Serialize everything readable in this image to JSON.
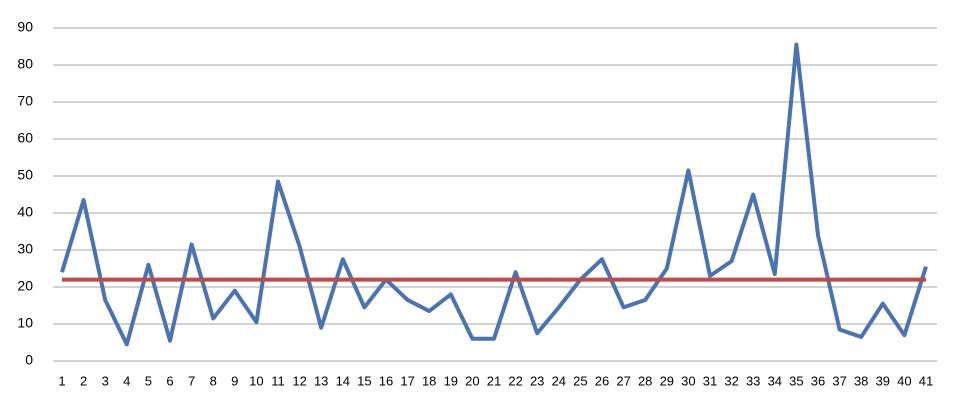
{
  "chart_data": {
    "type": "line",
    "categories": [
      "1",
      "2",
      "3",
      "4",
      "5",
      "6",
      "7",
      "8",
      "9",
      "10",
      "11",
      "12",
      "13",
      "14",
      "15",
      "16",
      "17",
      "18",
      "19",
      "20",
      "21",
      "22",
      "23",
      "24",
      "25",
      "26",
      "27",
      "28",
      "29",
      "30",
      "31",
      "32",
      "33",
      "34",
      "35",
      "36",
      "37",
      "38",
      "39",
      "40",
      "41"
    ],
    "series": [
      {
        "color": "#4a73b3",
        "values": [
          24,
          43.5,
          16.5,
          4.5,
          26,
          5.5,
          31.5,
          11.5,
          19,
          10.5,
          48.5,
          31,
          9,
          27.5,
          14.5,
          22,
          16.5,
          13.5,
          18,
          6,
          6,
          24,
          7.5,
          14.5,
          22,
          27.5,
          14.5,
          16.5,
          25,
          51.5,
          23,
          27,
          45,
          23.5,
          85.5,
          34,
          8.5,
          6.5,
          15.5,
          7,
          25.5
        ]
      },
      {
        "color": "#be4b48",
        "values": [
          22,
          22,
          22,
          22,
          22,
          22,
          22,
          22,
          22,
          22,
          22,
          22,
          22,
          22,
          22,
          22,
          22,
          22,
          22,
          22,
          22,
          22,
          22,
          22,
          22,
          22,
          22,
          22,
          22,
          22,
          22,
          22,
          22,
          22,
          22,
          22,
          22,
          22,
          22,
          22,
          22
        ]
      }
    ],
    "ylim": [
      0,
      90
    ],
    "yticks": [
      0,
      10,
      20,
      30,
      40,
      50,
      60,
      70,
      80,
      90
    ],
    "grid": true
  }
}
